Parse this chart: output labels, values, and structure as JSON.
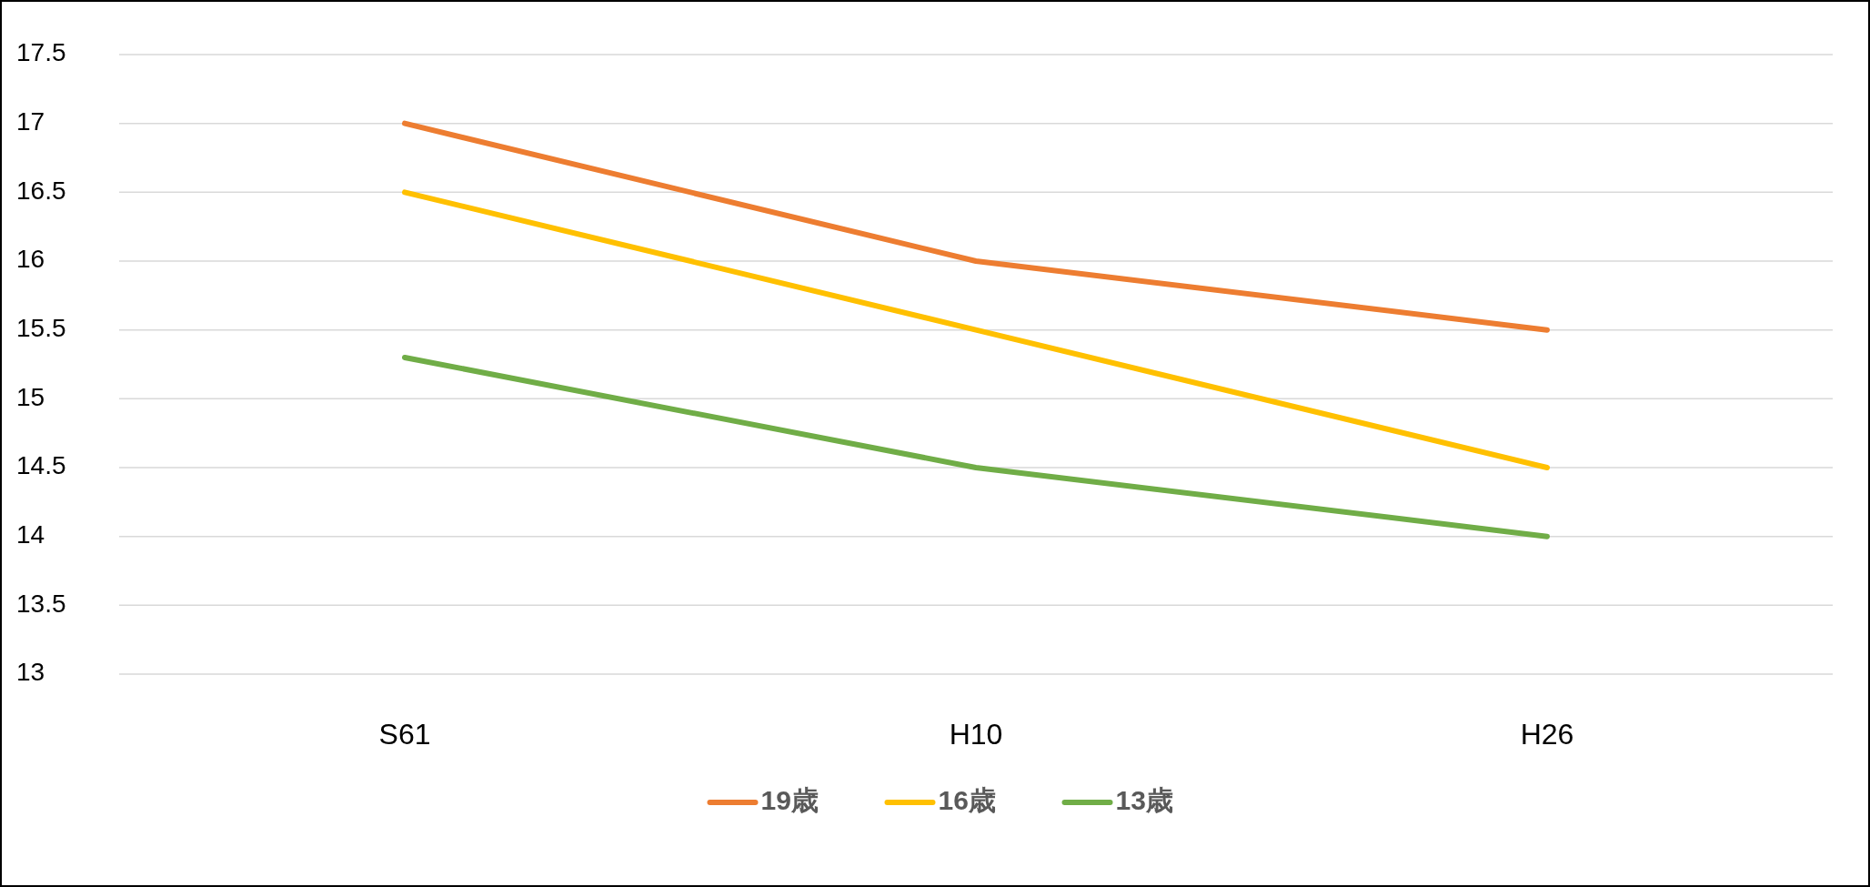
{
  "chart_data": {
    "type": "line",
    "categories": [
      "S61",
      "H10",
      "H26"
    ],
    "series": [
      {
        "name": "19歳",
        "color": "#ed7d31",
        "values": [
          17,
          16,
          15.5
        ]
      },
      {
        "name": "16歳",
        "color": "#ffc000",
        "values": [
          16.5,
          15.5,
          14.5
        ]
      },
      {
        "name": "13歳",
        "color": "#70ad47",
        "values": [
          15.3,
          14.5,
          14.0
        ]
      }
    ],
    "ylim": [
      13,
      17.5
    ],
    "yticks": [
      13,
      13.5,
      14,
      14.5,
      15,
      15.5,
      16,
      16.5,
      17,
      17.5
    ],
    "grid": "y",
    "legend": "bottom",
    "marker": "none",
    "line_style": "solid"
  }
}
